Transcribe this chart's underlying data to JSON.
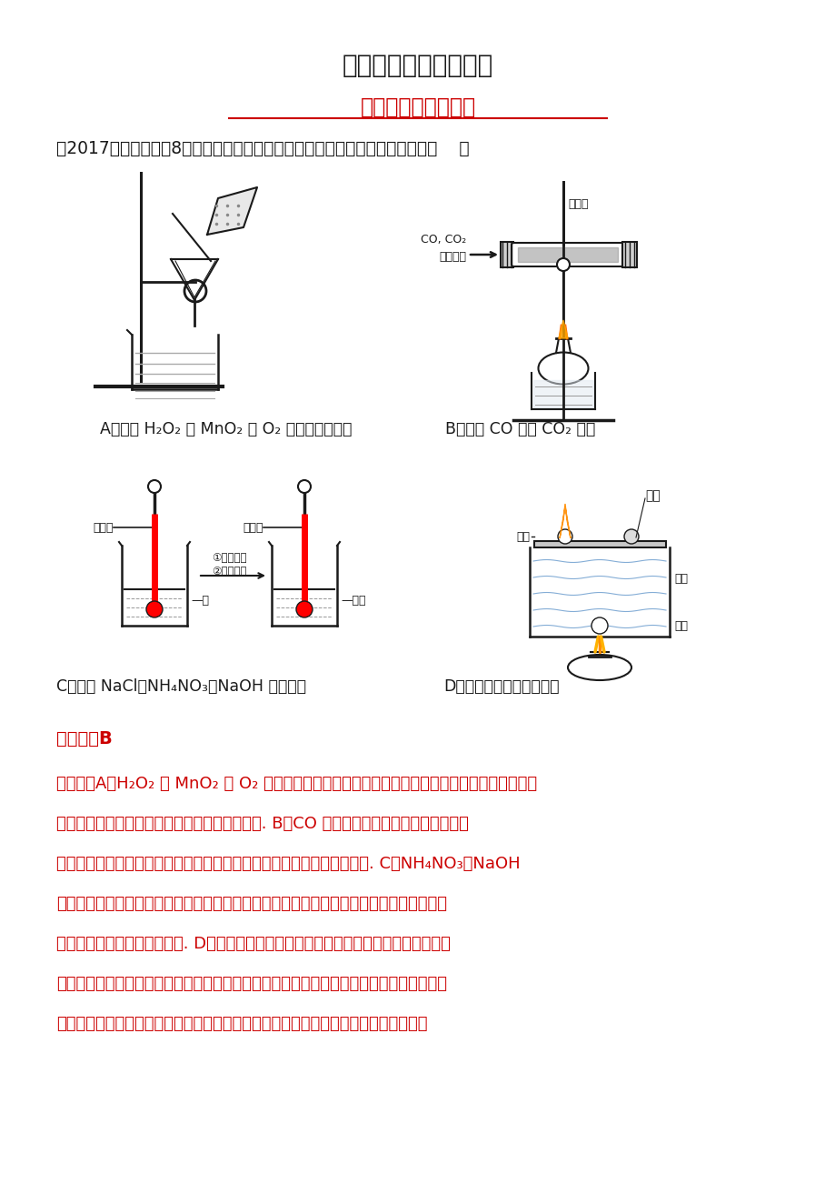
{
  "title": "新编中考化学复习资料",
  "subtitle": "实验设计与探究实验",
  "question": "【2017年深圳中考】8．为了达到相应的实验目的，下列实验设计不合理的是（    ）",
  "label_A": "A．分离 H₂O₂ 和 MnO₂ 制 O₂ 后的固液混合物",
  "label_B": "B．除去 CO 中的 CO₂ 气体",
  "label_C": "C．区分 NaCl、NH₄NO₃、NaOH 三种固体",
  "label_D": "D．探究可燃物燃烧的条件",
  "answer": "【答案】B",
  "explanation": [
    "【解析】A、H₂O₂ 和 MnO₂ 制 O₂ 后的固液混合物是水和二氧化锰的混合物，二氧化锰难溶于水，",
    "可用过滤的方法进行分离，故选项实验设计合理. B、CO 能与灼热的氧化铜反应生成铜和二",
    "氧化碳，反而会把原物质除去，不符合除杂原则，故选项实验设计不合理. C、NH₄NO₃、NaOH",
    "溶于水分别吸热、放热，使溶液的温度分别降低、升高，氯化钠溶于水温度几乎无变化，可",
    "以鉴别，故选项实验设计合理. D、铜片的白磷燃烧，红磷不燃烧，水中的白磷不能燃烧，",
    "薄铜片上的白磷能与氧气接触，温度能达到着火点，水中的白磷不能与氧气接触，红磷温度",
    "没有达到着火点；可得出燃烧需要与氧气接触，且温度达到着火点，故选项实验设计合"
  ],
  "bg": "#ffffff",
  "black": "#1a1a1a",
  "red": "#cc0000",
  "title_fs": 20,
  "sub_fs": 17,
  "q_fs": 13.5,
  "cap_fs": 12.5,
  "ans_fs": 14,
  "exp_fs": 13
}
